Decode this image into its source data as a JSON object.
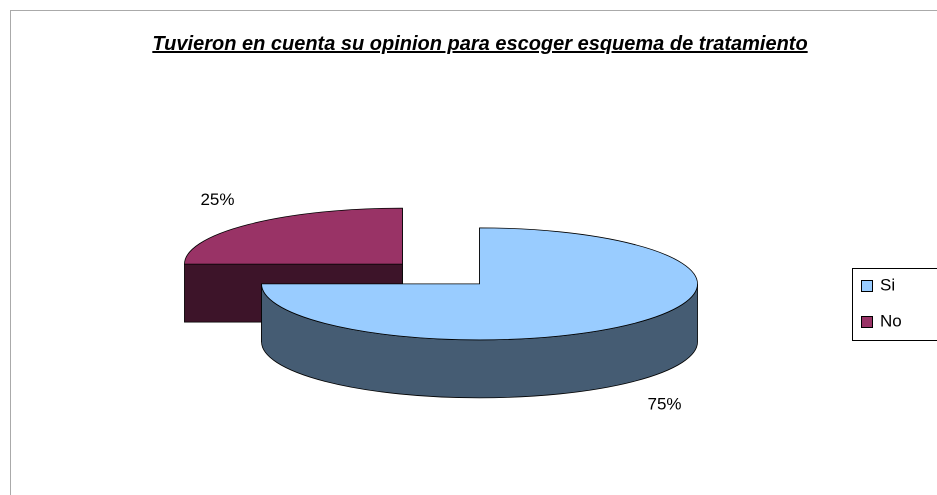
{
  "chart_data": {
    "type": "pie",
    "title": "Tuvieron en cuenta su opinion para escoger esquema de tratamiento",
    "categories": [
      "Si",
      "No"
    ],
    "values": [
      75,
      25
    ],
    "value_labels": [
      "75%",
      "25%"
    ],
    "colors": [
      "#99ccff",
      "#993366"
    ],
    "legend": "right"
  }
}
